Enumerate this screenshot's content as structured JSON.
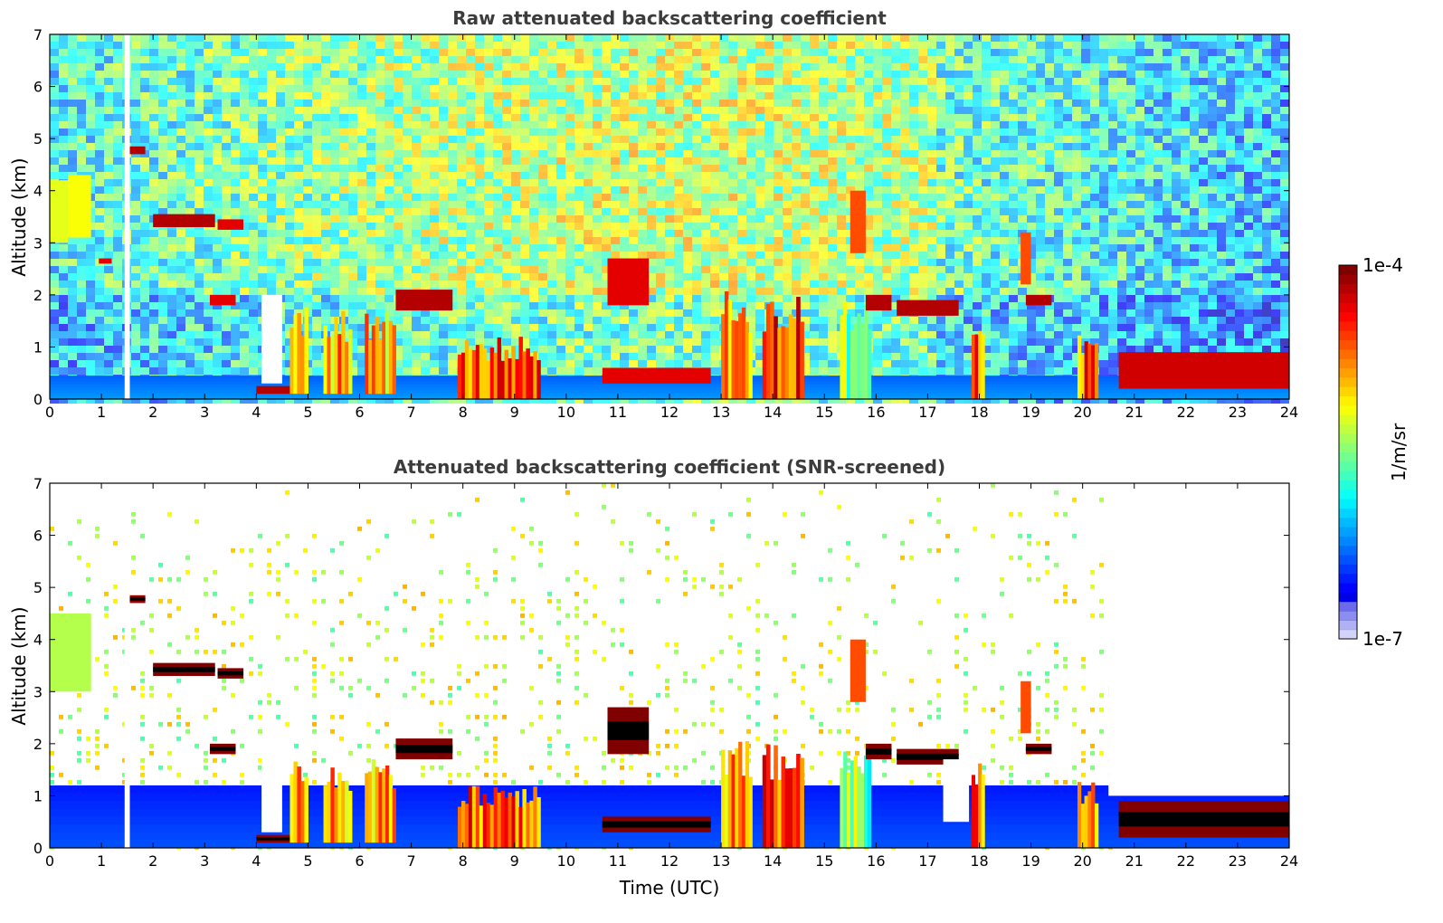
{
  "chart_data": [
    {
      "type": "heatmap",
      "title": "Raw attenuated backscattering coefficient",
      "xlabel": "",
      "ylabel": "Altitude (km)",
      "xlim": [
        0,
        24
      ],
      "ylim": [
        0,
        7
      ],
      "xticks": [
        "0",
        "1",
        "2",
        "3",
        "4",
        "5",
        "6",
        "7",
        "8",
        "9",
        "10",
        "11",
        "12",
        "13",
        "14",
        "15",
        "16",
        "17",
        "18",
        "19",
        "20",
        "21",
        "22",
        "23",
        "24"
      ],
      "yticks": [
        "0",
        "1",
        "2",
        "3",
        "4",
        "5",
        "6",
        "7"
      ],
      "screened": false,
      "features": [
        {
          "kind": "aerosol_layer",
          "x": [
            0,
            24
          ],
          "y": [
            0,
            0.45
          ],
          "level": 0.22
        },
        {
          "kind": "cloud_band",
          "x": [
            0,
            0.35
          ],
          "y": [
            3.0,
            4.2
          ],
          "level": 0.6
        },
        {
          "kind": "cloud_band",
          "x": [
            0.35,
            0.8
          ],
          "y": [
            3.1,
            4.3
          ],
          "level": 0.62
        },
        {
          "kind": "cloud_band",
          "x": [
            1.55,
            1.85
          ],
          "y": [
            4.7,
            4.85
          ],
          "level": 0.95
        },
        {
          "kind": "cloud_band",
          "x": [
            2.0,
            3.2
          ],
          "y": [
            3.3,
            3.55
          ],
          "level": 0.95
        },
        {
          "kind": "cloud_band",
          "x": [
            3.25,
            3.75
          ],
          "y": [
            3.25,
            3.45
          ],
          "level": 0.9
        },
        {
          "kind": "cloud_band",
          "x": [
            3.1,
            3.6
          ],
          "y": [
            1.8,
            2.0
          ],
          "level": 0.9
        },
        {
          "kind": "cloud_band",
          "x": [
            0.95,
            1.2
          ],
          "y": [
            2.6,
            2.7
          ],
          "level": 0.9
        },
        {
          "kind": "cloud_band",
          "x": [
            4.0,
            4.7
          ],
          "y": [
            0.1,
            0.25
          ],
          "level": 0.95
        },
        {
          "kind": "cloud_column",
          "x": [
            4.65,
            5.0
          ],
          "y": [
            0.1,
            1.9
          ],
          "level": 0.75
        },
        {
          "kind": "cloud_column",
          "x": [
            5.3,
            5.85
          ],
          "y": [
            0.1,
            1.7
          ],
          "level": 0.72
        },
        {
          "kind": "cloud_column",
          "x": [
            6.1,
            6.7
          ],
          "y": [
            0.1,
            1.8
          ],
          "level": 0.7
        },
        {
          "kind": "cloud_band",
          "x": [
            6.7,
            7.8
          ],
          "y": [
            1.7,
            2.1
          ],
          "level": 0.95
        },
        {
          "kind": "cloud_column",
          "x": [
            7.9,
            9.5
          ],
          "y": [
            0.0,
            1.2
          ],
          "level": 0.78
        },
        {
          "kind": "cloud_band",
          "x": [
            10.8,
            11.6
          ],
          "y": [
            1.8,
            2.7
          ],
          "level": 0.9
        },
        {
          "kind": "cloud_band",
          "x": [
            10.7,
            12.8
          ],
          "y": [
            0.3,
            0.6
          ],
          "level": 0.9
        },
        {
          "kind": "cloud_column",
          "x": [
            13.0,
            13.6
          ],
          "y": [
            0.0,
            2.1
          ],
          "level": 0.7
        },
        {
          "kind": "cloud_column",
          "x": [
            13.8,
            14.6
          ],
          "y": [
            0.0,
            2.0
          ],
          "level": 0.82
        },
        {
          "kind": "cloud_column",
          "x": [
            15.3,
            15.9
          ],
          "y": [
            0.0,
            2.0
          ],
          "level": 0.5
        },
        {
          "kind": "cloud_band",
          "x": [
            15.5,
            15.8
          ],
          "y": [
            2.8,
            4.0
          ],
          "level": 0.8
        },
        {
          "kind": "cloud_band",
          "x": [
            15.8,
            16.3
          ],
          "y": [
            1.7,
            2.0
          ],
          "level": 0.95
        },
        {
          "kind": "cloud_band",
          "x": [
            16.4,
            17.6
          ],
          "y": [
            1.6,
            1.9
          ],
          "level": 0.95
        },
        {
          "kind": "cloud_column",
          "x": [
            17.85,
            18.1
          ],
          "y": [
            0.0,
            1.8
          ],
          "level": 0.78
        },
        {
          "kind": "cloud_band",
          "x": [
            18.8,
            19.0
          ],
          "y": [
            2.2,
            3.2
          ],
          "level": 0.8
        },
        {
          "kind": "cloud_band",
          "x": [
            18.9,
            19.4
          ],
          "y": [
            1.8,
            2.0
          ],
          "level": 0.95
        },
        {
          "kind": "cloud_column",
          "x": [
            19.9,
            20.3
          ],
          "y": [
            0.0,
            1.4
          ],
          "level": 0.78
        },
        {
          "kind": "cloud_band",
          "x": [
            20.7,
            24.0
          ],
          "y": [
            0.2,
            0.9
          ],
          "level": 0.92
        }
      ],
      "gaps": [
        {
          "x": [
            1.45,
            1.55
          ],
          "y": [
            0,
            7
          ]
        },
        {
          "x": [
            4.1,
            4.5
          ],
          "y": [
            0.3,
            2.0
          ]
        }
      ]
    },
    {
      "type": "heatmap",
      "title": "Attenuated backscattering coefficient (SNR-screened)",
      "xlabel": "Time (UTC)",
      "ylabel": "Altitude (km)",
      "xlim": [
        0,
        24
      ],
      "ylim": [
        0,
        7
      ],
      "xticks": [
        "0",
        "1",
        "2",
        "3",
        "4",
        "5",
        "6",
        "7",
        "8",
        "9",
        "10",
        "11",
        "12",
        "13",
        "14",
        "15",
        "16",
        "17",
        "18",
        "19",
        "20",
        "21",
        "22",
        "23",
        "24"
      ],
      "yticks": [
        "0",
        "1",
        "2",
        "3",
        "4",
        "5",
        "6",
        "7"
      ],
      "screened": true,
      "features": [
        {
          "kind": "aerosol_layer",
          "x": [
            0,
            24
          ],
          "y": [
            0,
            1.2
          ],
          "level": 0.15
        },
        {
          "kind": "cloud_band",
          "x": [
            0,
            0.8
          ],
          "y": [
            3.0,
            4.5
          ],
          "level": 0.55
        },
        {
          "kind": "cloud_band",
          "x": [
            1.55,
            1.85
          ],
          "y": [
            4.7,
            4.85
          ],
          "level": 0.97
        },
        {
          "kind": "cloud_band",
          "x": [
            2.0,
            3.2
          ],
          "y": [
            3.3,
            3.55
          ],
          "level": 1.0
        },
        {
          "kind": "cloud_band",
          "x": [
            3.25,
            3.75
          ],
          "y": [
            3.25,
            3.45
          ],
          "level": 1.0
        },
        {
          "kind": "cloud_band",
          "x": [
            3.1,
            3.6
          ],
          "y": [
            1.8,
            2.0
          ],
          "level": 1.0
        },
        {
          "kind": "cloud_band",
          "x": [
            4.0,
            4.7
          ],
          "y": [
            0.1,
            0.25
          ],
          "level": 0.98
        },
        {
          "kind": "cloud_column",
          "x": [
            4.65,
            5.0
          ],
          "y": [
            0.1,
            1.9
          ],
          "level": 0.75
        },
        {
          "kind": "cloud_column",
          "x": [
            5.3,
            5.85
          ],
          "y": [
            0.1,
            1.7
          ],
          "level": 0.72
        },
        {
          "kind": "cloud_column",
          "x": [
            6.1,
            6.7
          ],
          "y": [
            0.1,
            1.8
          ],
          "level": 0.7
        },
        {
          "kind": "cloud_band",
          "x": [
            6.7,
            7.8
          ],
          "y": [
            1.7,
            2.1
          ],
          "level": 1.0
        },
        {
          "kind": "cloud_column",
          "x": [
            7.9,
            9.5
          ],
          "y": [
            0.0,
            1.2
          ],
          "level": 0.78
        },
        {
          "kind": "cloud_band",
          "x": [
            10.8,
            11.6
          ],
          "y": [
            1.8,
            2.7
          ],
          "level": 1.0
        },
        {
          "kind": "cloud_band",
          "x": [
            10.7,
            12.8
          ],
          "y": [
            0.3,
            0.6
          ],
          "level": 1.0
        },
        {
          "kind": "cloud_column",
          "x": [
            13.0,
            13.6
          ],
          "y": [
            0.0,
            2.1
          ],
          "level": 0.7
        },
        {
          "kind": "cloud_column",
          "x": [
            13.8,
            14.6
          ],
          "y": [
            0.0,
            2.0
          ],
          "level": 0.82
        },
        {
          "kind": "cloud_column",
          "x": [
            15.3,
            15.9
          ],
          "y": [
            0.0,
            2.0
          ],
          "level": 0.5
        },
        {
          "kind": "cloud_band",
          "x": [
            15.5,
            15.8
          ],
          "y": [
            2.8,
            4.0
          ],
          "level": 0.8
        },
        {
          "kind": "cloud_band",
          "x": [
            15.8,
            16.3
          ],
          "y": [
            1.7,
            2.0
          ],
          "level": 1.0
        },
        {
          "kind": "cloud_band",
          "x": [
            16.4,
            17.6
          ],
          "y": [
            1.6,
            1.9
          ],
          "level": 1.0
        },
        {
          "kind": "cloud_column",
          "x": [
            17.85,
            18.1
          ],
          "y": [
            0.0,
            1.8
          ],
          "level": 0.78
        },
        {
          "kind": "cloud_band",
          "x": [
            18.8,
            19.0
          ],
          "y": [
            2.2,
            3.2
          ],
          "level": 0.8
        },
        {
          "kind": "cloud_band",
          "x": [
            18.9,
            19.4
          ],
          "y": [
            1.8,
            2.0
          ],
          "level": 1.0
        },
        {
          "kind": "cloud_column",
          "x": [
            19.9,
            20.3
          ],
          "y": [
            0.0,
            1.4
          ],
          "level": 0.78
        },
        {
          "kind": "cloud_band",
          "x": [
            20.7,
            24.0
          ],
          "y": [
            0.2,
            0.9
          ],
          "level": 1.0
        }
      ],
      "gaps": [
        {
          "x": [
            1.45,
            1.55
          ],
          "y": [
            0,
            7
          ]
        },
        {
          "x": [
            4.1,
            4.5
          ],
          "y": [
            0.3,
            2.0
          ]
        },
        {
          "x": [
            17.3,
            17.8
          ],
          "y": [
            0.5,
            1.7
          ]
        },
        {
          "x": [
            20.5,
            24.0
          ],
          "y": [
            1.0,
            7.0
          ]
        }
      ]
    }
  ],
  "colorbar": {
    "top_label": "1e-4",
    "bottom_label": "1e-7",
    "unit_label": "1/m/sr",
    "scale": "log",
    "range": [
      1e-07,
      0.0001
    ],
    "colormap": "jet"
  }
}
